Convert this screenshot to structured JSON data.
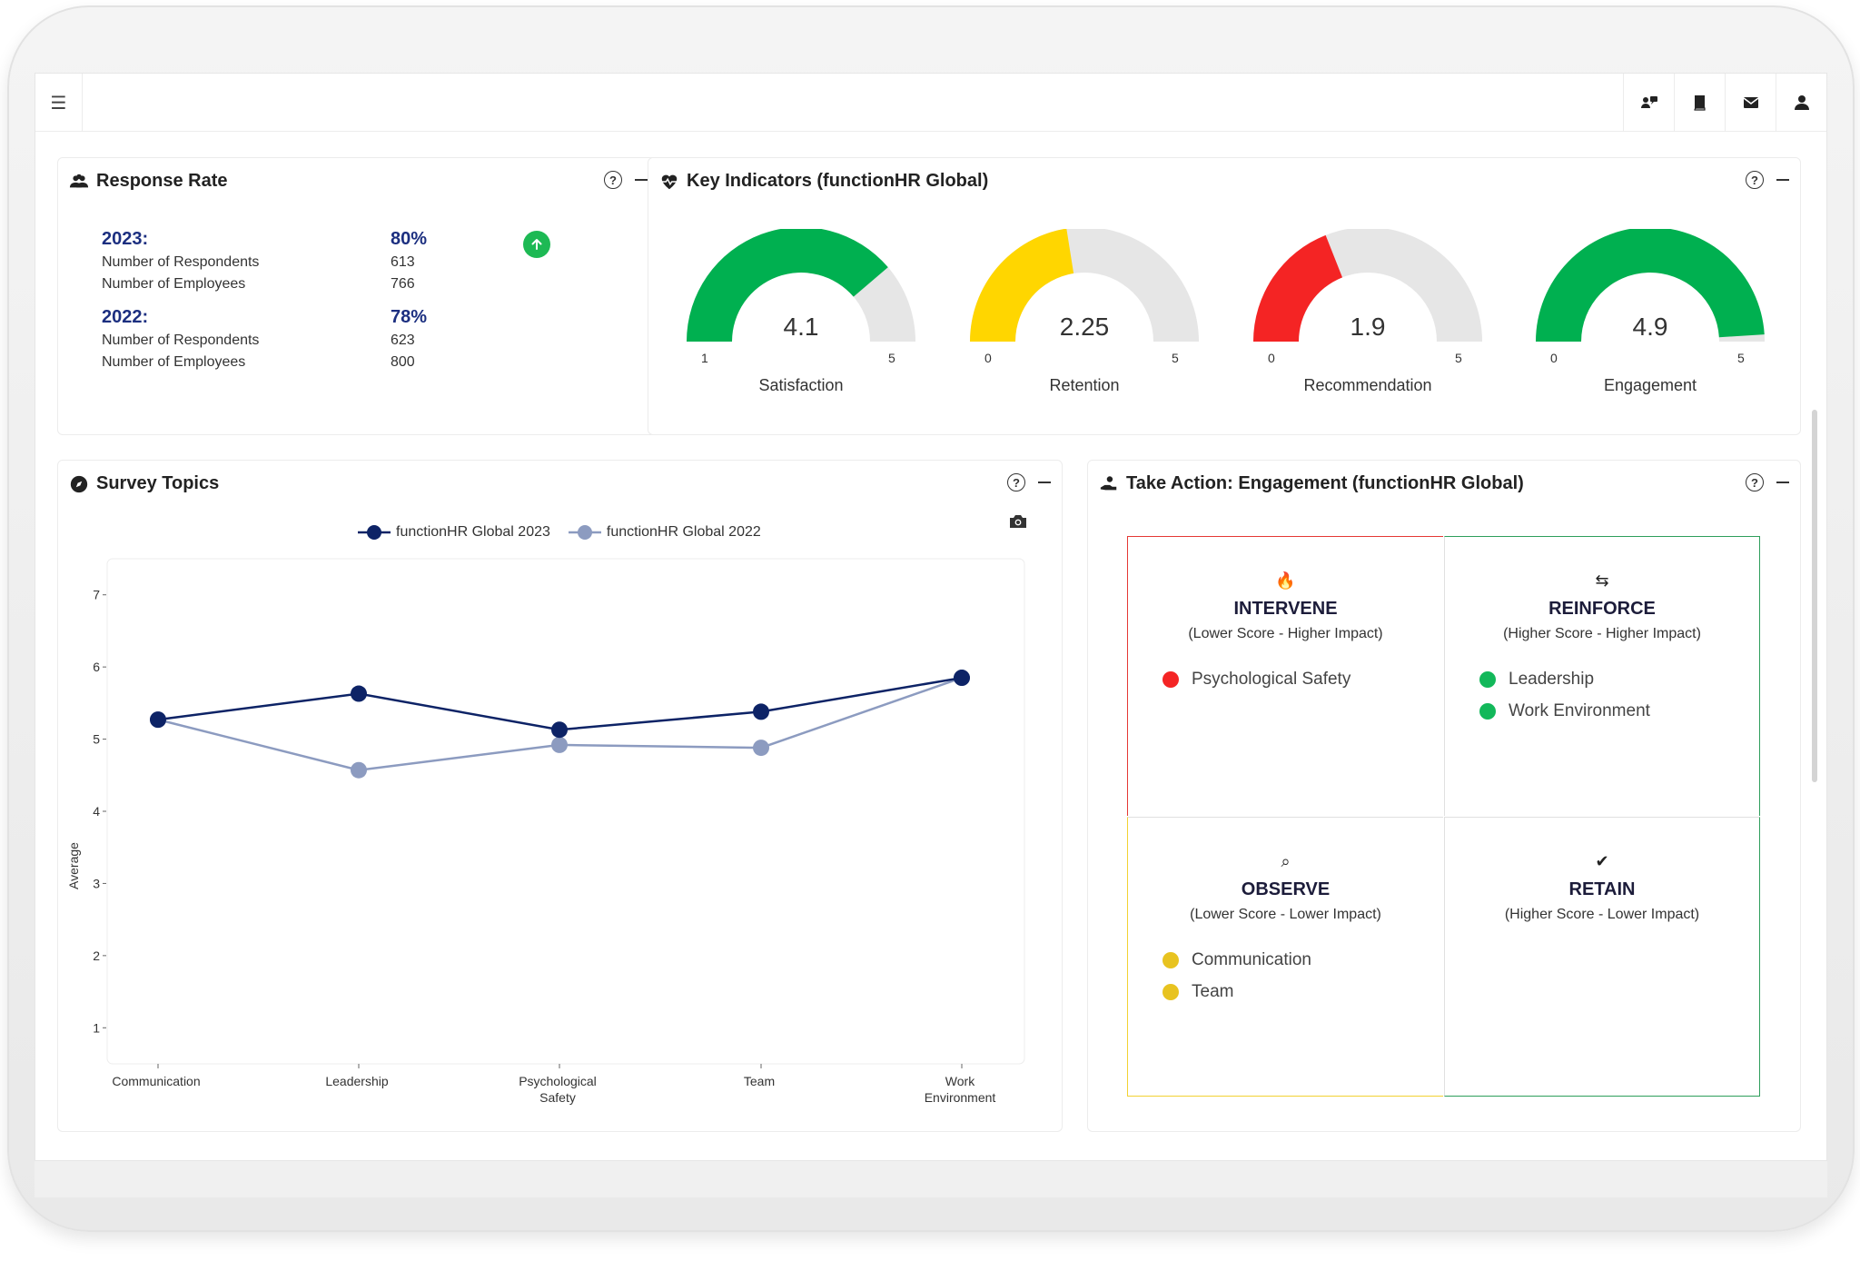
{
  "response_rate": {
    "title": "Response Rate",
    "years": [
      {
        "year": "2023:",
        "rate": "80%",
        "rows": [
          {
            "label": "Number of Respondents",
            "value": "613"
          },
          {
            "label": "Number of Employees",
            "value": "766"
          }
        ]
      },
      {
        "year": "2022:",
        "rate": "78%",
        "rows": [
          {
            "label": "Number of Respondents",
            "value": "623"
          },
          {
            "label": "Number of Employees",
            "value": "800"
          }
        ]
      }
    ],
    "trend_icon": "arrow-up-icon",
    "trend_color": "#1db954"
  },
  "key_indicators": {
    "title": "Key Indicators (functionHR Global)",
    "gauges": [
      {
        "label": "Satisfaction",
        "value": "4.1",
        "min": "1",
        "max": "5",
        "color": "#00b050",
        "fill": 0.775
      },
      {
        "label": "Retention",
        "value": "2.25",
        "min": "0",
        "max": "5",
        "color": "#ffd600",
        "fill": 0.45
      },
      {
        "label": "Recommendation",
        "value": "1.9",
        "min": "0",
        "max": "5",
        "color": "#f42424",
        "fill": 0.38
      },
      {
        "label": "Engagement",
        "value": "4.9",
        "min": "0",
        "max": "5",
        "color": "#00b050",
        "fill": 0.98
      }
    ]
  },
  "survey_topics": {
    "title": "Survey Topics",
    "camera_icon": "camera-icon"
  },
  "chart_data": {
    "type": "line",
    "categories": [
      "Communication",
      "Leadership",
      "Psychological Safety",
      "Team",
      "Work Environment"
    ],
    "category_lines": [
      [
        "Communication"
      ],
      [
        "Leadership"
      ],
      [
        "Psychological",
        "Safety"
      ],
      [
        "Team"
      ],
      [
        "Work",
        "Environment"
      ]
    ],
    "series": [
      {
        "name": "functionHR Global 2023",
        "values": [
          5.27,
          5.63,
          5.13,
          5.38,
          5.85
        ],
        "color": "#0d2366"
      },
      {
        "name": "functionHR Global 2022",
        "values": [
          5.27,
          4.57,
          4.92,
          4.88,
          5.85
        ],
        "color": "#8c9bc0"
      }
    ],
    "ylabel": "Average",
    "yticks": [
      "1",
      "2",
      "3",
      "4",
      "5",
      "6",
      "7"
    ],
    "ylim": [
      0.5,
      7.5
    ],
    "grid": false,
    "legend": "top"
  },
  "take_action": {
    "title": "Take Action: Engagement (functionHR Global)",
    "quadrants": [
      {
        "key": "intervene",
        "icon": "fire-icon",
        "title": "INTERVENE",
        "subtitle": "(Lower Score - Higher Impact)",
        "border": "#e53935",
        "items": [
          {
            "label": "Psychological Safety",
            "color": "#f42424"
          }
        ]
      },
      {
        "key": "reinforce",
        "icon": "arrows-icon",
        "title": "REINFORCE",
        "subtitle": "(Higher Score - Higher Impact)",
        "border": "#2e9e5b",
        "items": [
          {
            "label": "Leadership",
            "color": "#12b85a"
          },
          {
            "label": "Work Environment",
            "color": "#12b85a"
          }
        ]
      },
      {
        "key": "observe",
        "icon": "search-icon",
        "title": "OBSERVE",
        "subtitle": "(Lower Score - Lower Impact)",
        "border": "#f2d233",
        "items": [
          {
            "label": "Communication",
            "color": "#e8c320"
          },
          {
            "label": "Team",
            "color": "#e8c320"
          }
        ]
      },
      {
        "key": "retain",
        "icon": "check-icon",
        "title": "RETAIN",
        "subtitle": "(Higher Score - Lower Impact)",
        "border": "#2e9e5b",
        "items": []
      }
    ]
  },
  "topbar": {
    "menu_icon": "hamburger-icon",
    "icons": [
      "users-chat-icon",
      "book-icon",
      "mail-icon",
      "user-icon"
    ]
  }
}
